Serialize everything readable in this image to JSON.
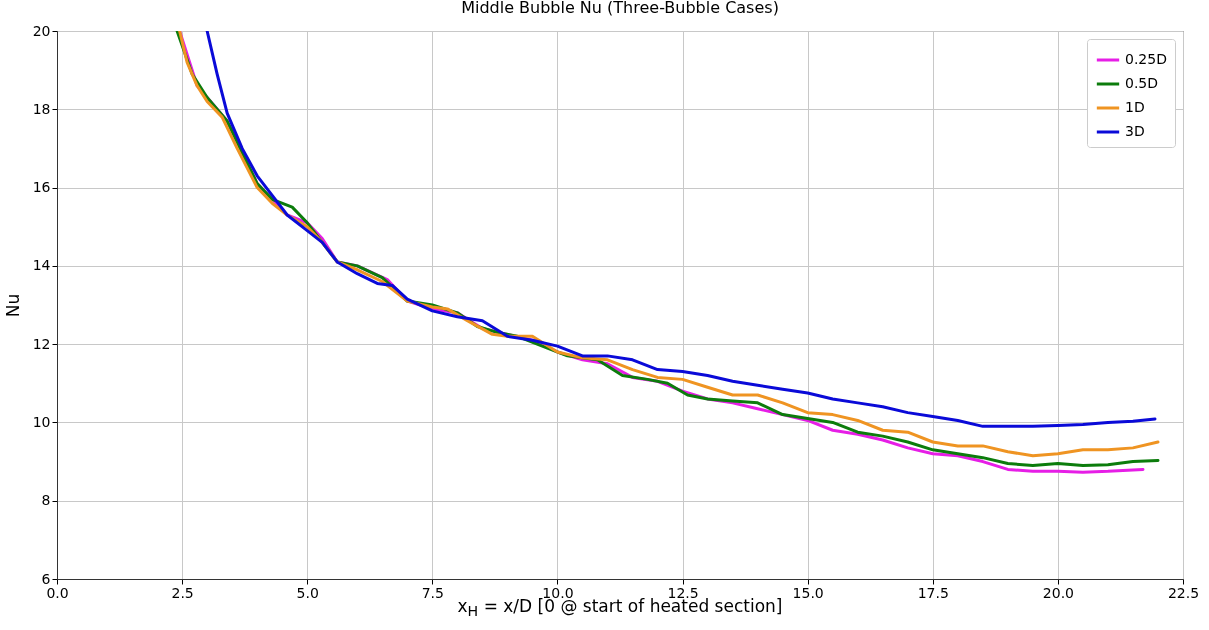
{
  "chart_data": {
    "type": "line",
    "title": "Middle Bubble Nu (Three-Bubble Cases)",
    "xlabel": "x$_{H}$ = x/D [0 @ start of heated section]",
    "ylabel": "Nu",
    "xlim": [
      0,
      22.5
    ],
    "ylim": [
      6,
      20
    ],
    "xticks": [
      {
        "value": 0,
        "label": "0.0"
      },
      2.5,
      {
        "value": 5,
        "label": "5.0"
      },
      7.5,
      {
        "value": 10,
        "label": "10.0"
      },
      12.5,
      {
        "value": 15,
        "label": "15.0"
      },
      17.5,
      {
        "value": 20,
        "label": "20.0"
      },
      22.5
    ],
    "yticks": [
      6,
      8,
      10,
      12,
      14,
      16,
      18,
      20
    ],
    "grid": true,
    "legend": "top right",
    "line_style": "solid",
    "series": [
      {
        "name": "0.25D",
        "color": "#e61ee6",
        "x": [
          2.45,
          2.8,
          3.0,
          3.4,
          4.0,
          4.3,
          4.6,
          5.0,
          5.3,
          5.6,
          6.0,
          6.6,
          7.0,
          7.5,
          8.0,
          8.5,
          9.0,
          9.5,
          10.0,
          10.5,
          11.0,
          11.5,
          12.0,
          12.5,
          13.0,
          13.5,
          14.0,
          14.5,
          15.0,
          15.5,
          16.0,
          16.5,
          17.0,
          17.5,
          18.0,
          18.5,
          19.0,
          19.5,
          20.0,
          20.5,
          21.0,
          21.7
        ],
        "values": [
          20,
          18.6,
          18.3,
          17.7,
          16.1,
          15.7,
          15.3,
          15.1,
          14.7,
          14.1,
          14.0,
          13.65,
          13.1,
          12.9,
          12.8,
          12.4,
          12.25,
          12.1,
          11.8,
          11.6,
          11.5,
          11.15,
          11.05,
          10.8,
          10.6,
          10.5,
          10.35,
          10.2,
          10.05,
          9.8,
          9.7,
          9.55,
          9.35,
          9.2,
          9.15,
          9.0,
          8.8,
          8.75,
          8.75,
          8.73,
          8.75,
          8.8
        ]
      },
      {
        "name": "0.5D",
        "color": "#0c7c0c",
        "x": [
          2.4,
          2.7,
          3.0,
          3.4,
          4.0,
          4.3,
          4.7,
          5.0,
          5.3,
          5.6,
          6.0,
          6.5,
          7.0,
          7.5,
          8.0,
          8.4,
          8.8,
          9.2,
          9.8,
          10.2,
          10.8,
          11.3,
          11.8,
          12.2,
          12.6,
          13.0,
          13.5,
          14.0,
          14.5,
          15.0,
          15.5,
          16.0,
          16.5,
          17.0,
          17.5,
          18.0,
          18.5,
          19.0,
          19.5,
          20.0,
          20.5,
          21.0,
          21.5,
          22.0
        ],
        "values": [
          20,
          18.9,
          18.3,
          17.7,
          16.1,
          15.7,
          15.5,
          15.1,
          14.6,
          14.1,
          14.0,
          13.7,
          13.1,
          13.0,
          12.8,
          12.45,
          12.3,
          12.2,
          11.9,
          11.7,
          11.6,
          11.2,
          11.1,
          11.0,
          10.7,
          10.6,
          10.55,
          10.5,
          10.2,
          10.1,
          10.0,
          9.75,
          9.65,
          9.5,
          9.3,
          9.2,
          9.1,
          8.95,
          8.9,
          8.95,
          8.9,
          8.92,
          9.0,
          9.03
        ]
      },
      {
        "name": "1D",
        "color": "#ef9422",
        "x": [
          2.45,
          2.6,
          2.8,
          3.0,
          3.3,
          3.6,
          4.0,
          4.3,
          4.6,
          5.0,
          5.3,
          5.6,
          6.0,
          6.5,
          7.0,
          7.5,
          7.8,
          8.2,
          8.7,
          9.0,
          9.5,
          10.0,
          10.5,
          11.0,
          11.5,
          12.0,
          12.5,
          13.0,
          13.5,
          14.0,
          14.5,
          15.0,
          15.5,
          16.0,
          16.5,
          17.0,
          17.5,
          18.0,
          18.5,
          19.0,
          19.5,
          20.0,
          20.5,
          21.0,
          21.5,
          22.0
        ],
        "values": [
          20,
          19.2,
          18.6,
          18.2,
          17.8,
          17.0,
          16.0,
          15.6,
          15.3,
          15.0,
          14.6,
          14.1,
          13.9,
          13.6,
          13.1,
          12.95,
          12.9,
          12.6,
          12.25,
          12.2,
          12.2,
          11.8,
          11.65,
          11.6,
          11.35,
          11.15,
          11.1,
          10.9,
          10.7,
          10.7,
          10.5,
          10.25,
          10.2,
          10.05,
          9.8,
          9.75,
          9.5,
          9.4,
          9.4,
          9.25,
          9.15,
          9.2,
          9.3,
          9.3,
          9.35,
          9.5
        ]
      },
      {
        "name": "3D",
        "color": "#0a0ad8",
        "x": [
          3.0,
          3.2,
          3.4,
          3.7,
          4.0,
          4.3,
          4.6,
          5.0,
          5.3,
          5.6,
          6.0,
          6.4,
          6.7,
          7.0,
          7.5,
          8.0,
          8.5,
          9.0,
          9.5,
          10.0,
          10.5,
          11.0,
          11.5,
          12.0,
          12.5,
          13.0,
          13.5,
          14.0,
          14.5,
          15.0,
          15.5,
          16.0,
          16.5,
          17.0,
          17.5,
          18.0,
          18.5,
          19.0,
          19.5,
          20.0,
          20.5,
          21.0,
          21.5,
          21.94
        ],
        "values": [
          20,
          18.9,
          17.9,
          17.0,
          16.3,
          15.8,
          15.3,
          14.9,
          14.6,
          14.1,
          13.8,
          13.55,
          13.5,
          13.15,
          12.85,
          12.7,
          12.6,
          12.2,
          12.1,
          11.95,
          11.7,
          11.7,
          11.6,
          11.35,
          11.3,
          11.2,
          11.05,
          10.95,
          10.85,
          10.75,
          10.6,
          10.5,
          10.4,
          10.25,
          10.15,
          10.05,
          9.9,
          9.9,
          9.9,
          9.92,
          9.95,
          10.0,
          10.03,
          10.09
        ]
      }
    ]
  }
}
